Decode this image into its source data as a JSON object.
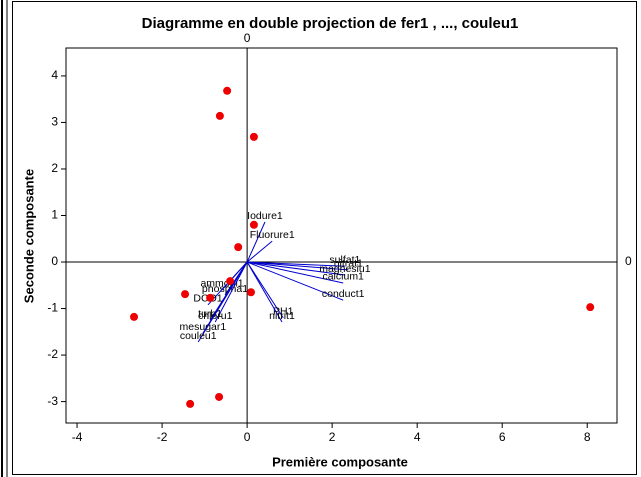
{
  "chart_data": {
    "type": "biplot",
    "title": "Diagramme en double projection de fer1 , ..., couleu1",
    "xlabel": "Première composante",
    "ylabel": "Seconde composante",
    "xlim": [
      -4.26,
      8.7
    ],
    "ylim": [
      -3.46,
      4.6
    ],
    "xticks": [
      -4,
      -2,
      0,
      2,
      4,
      6,
      8
    ],
    "yticks": [
      -3,
      -2,
      -1,
      0,
      1,
      2,
      3,
      4
    ],
    "reference_lines": [
      {
        "axis": "x",
        "value": 0
      },
      {
        "axis": "y",
        "value": 0
      }
    ],
    "points": {
      "color": "#ee0000",
      "x": [
        -0.47,
        -0.64,
        0.16,
        0.16,
        -0.21,
        -0.4,
        -0.87,
        0.09,
        -1.46,
        -2.66,
        8.07,
        -0.66,
        -1.34
      ],
      "y": [
        3.68,
        3.14,
        2.69,
        0.8,
        0.32,
        -0.41,
        -0.77,
        -0.65,
        -0.69,
        -1.18,
        -0.97,
        -2.9,
        -3.05
      ]
    },
    "vectors": {
      "color": "#0000cc",
      "labels": [
        "Iodure1",
        "Fluorure1",
        "sulfat1",
        "nitrat1",
        "magnesiu1",
        "calcium1",
        "conduct1",
        "PH1",
        "nitrit1",
        "ammoni1",
        "phospha1",
        "DCO1",
        "turb1",
        "chloru1",
        "mesugar1",
        "couleu1"
      ],
      "x": [
        0.42,
        0.59,
        2.3,
        2.38,
        2.3,
        2.26,
        2.26,
        0.85,
        0.82,
        -0.59,
        -0.52,
        -0.92,
        -0.87,
        -0.75,
        -1.04,
        -1.15
      ],
      "y": [
        0.86,
        0.45,
        -0.09,
        -0.17,
        -0.28,
        -0.45,
        -0.82,
        -1.2,
        -1.29,
        -0.6,
        -0.71,
        -0.92,
        -1.25,
        -1.29,
        -1.53,
        -1.72
      ]
    }
  }
}
